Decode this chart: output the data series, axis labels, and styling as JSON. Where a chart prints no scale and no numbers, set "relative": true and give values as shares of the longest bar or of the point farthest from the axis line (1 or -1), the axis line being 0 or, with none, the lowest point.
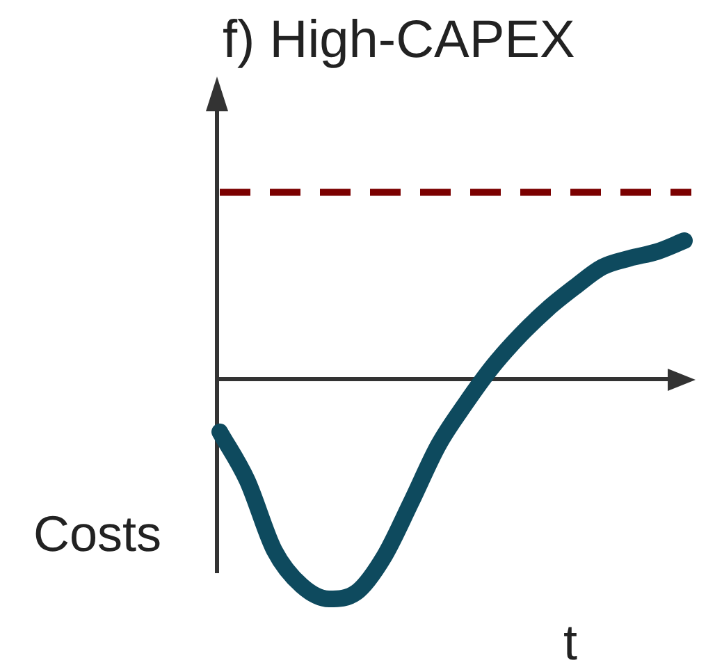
{
  "chart_data": {
    "type": "line",
    "title": "f) High-CAPEX",
    "xlabel": "t",
    "ylabel": "Costs",
    "relative": true,
    "categories": [
      null,
      null,
      null,
      null,
      null,
      null,
      null,
      null,
      null,
      null,
      null,
      null,
      null,
      null,
      null,
      null,
      null,
      null
    ],
    "series": [
      {
        "color": "#0e4a5e",
        "values": [
          -0.24,
          -0.46,
          -0.78,
          -0.94,
          -1,
          -0.97,
          -0.81,
          -0.56,
          -0.3,
          -0.11,
          0.06,
          0.2,
          0.32,
          0.42,
          0.51,
          0.55,
          0.58,
          0.63
        ]
      }
    ],
    "ref_lines": [
      {
        "axis": "y",
        "value": 0.85,
        "color": "#7b0000",
        "line_style": "dashed"
      }
    ]
  }
}
